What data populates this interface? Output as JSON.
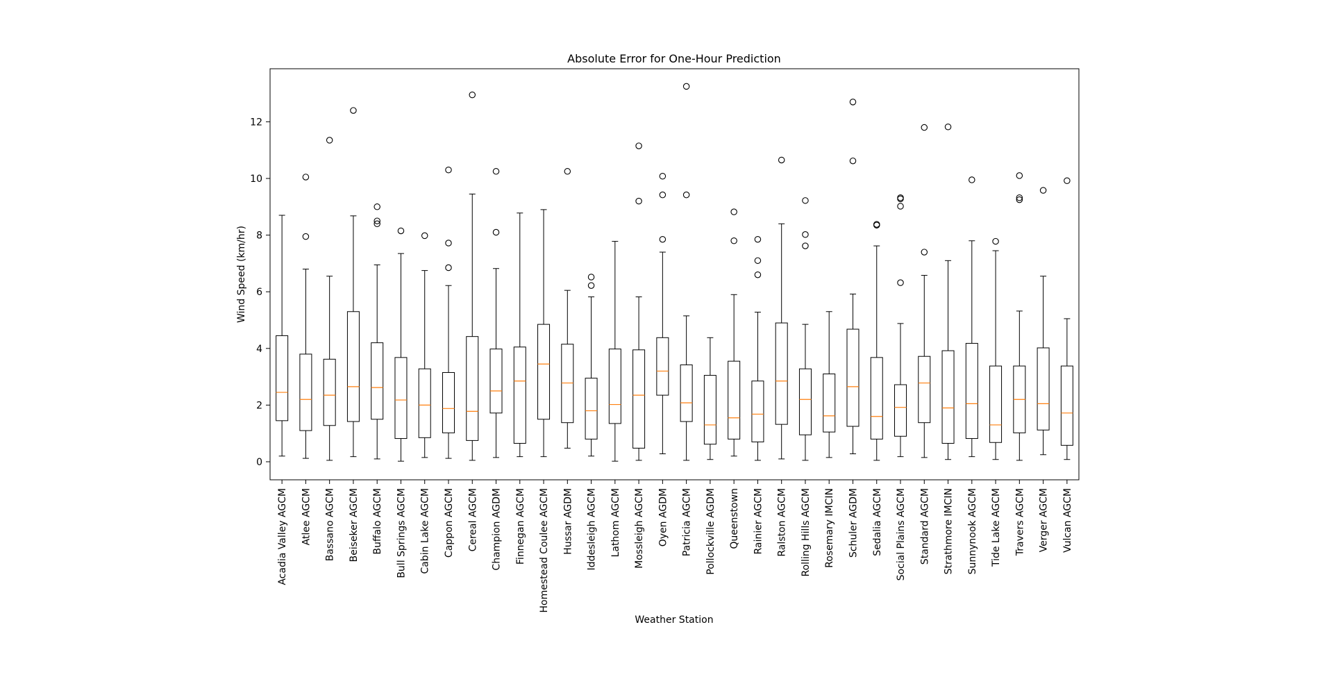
{
  "chart_data": {
    "type": "boxplot",
    "title": "Absolute Error for One-Hour Prediction",
    "xlabel": "Weather Station",
    "ylabel": "Wind Speed (km/hr)",
    "ylim": [
      -0.65,
      13.9
    ],
    "yticks": [
      0,
      2,
      4,
      6,
      8,
      10,
      12
    ],
    "grid": false,
    "colors": {
      "box": "#000000",
      "median": "#ff7f0e",
      "outlier": "#000000"
    },
    "categories": [
      "Acadia Valley AGCM",
      "Atlee AGCM",
      "Bassano AGCM",
      "Beiseker AGCM",
      "Buffalo AGCM",
      "Bull Springs AGCM",
      "Cabin Lake AGCM",
      "Cappon AGCM",
      "Cereal AGCM",
      "Champion AGDM",
      "Finnegan AGCM",
      "Homestead Coulee AGCM",
      "Hussar AGDM",
      "Iddesleigh AGCM",
      "Lathom AGCM",
      "Mossleigh AGCM",
      "Oyen AGDM",
      "Patricia AGCM",
      "Pollockville AGDM",
      "Queenstown",
      "Rainier AGCM",
      "Ralston AGCM",
      "Rolling Hills AGCM",
      "Rosemary IMCIN",
      "Schuler AGDM",
      "Sedalia AGCM",
      "Social Plains AGCM",
      "Standard AGCM",
      "Strathmore IMCIN",
      "Sunnynook AGCM",
      "Tide Lake AGCM",
      "Travers AGCM",
      "Verger AGCM",
      "Vulcan AGCM"
    ],
    "boxes": [
      {
        "whisker_low": 0.2,
        "q1": 1.45,
        "median": 2.45,
        "q3": 4.45,
        "whisker_high": 8.7,
        "outliers": []
      },
      {
        "whisker_low": 0.12,
        "q1": 1.1,
        "median": 2.2,
        "q3": 3.8,
        "whisker_high": 6.8,
        "outliers": [
          7.95,
          10.05
        ]
      },
      {
        "whisker_low": 0.05,
        "q1": 1.28,
        "median": 2.35,
        "q3": 3.62,
        "whisker_high": 6.55,
        "outliers": [
          11.35
        ]
      },
      {
        "whisker_low": 0.18,
        "q1": 1.42,
        "median": 2.65,
        "q3": 5.3,
        "whisker_high": 8.68,
        "outliers": [
          12.4
        ]
      },
      {
        "whisker_low": 0.1,
        "q1": 1.5,
        "median": 2.62,
        "q3": 4.2,
        "whisker_high": 6.95,
        "outliers": [
          8.4,
          8.5,
          9.0
        ]
      },
      {
        "whisker_low": 0.02,
        "q1": 0.82,
        "median": 2.18,
        "q3": 3.68,
        "whisker_high": 7.35,
        "outliers": [
          8.15
        ]
      },
      {
        "whisker_low": 0.15,
        "q1": 0.85,
        "median": 2.0,
        "q3": 3.28,
        "whisker_high": 6.75,
        "outliers": [
          7.98
        ]
      },
      {
        "whisker_low": 0.12,
        "q1": 1.02,
        "median": 1.88,
        "q3": 3.15,
        "whisker_high": 6.22,
        "outliers": [
          6.85,
          7.72,
          10.3
        ]
      },
      {
        "whisker_low": 0.05,
        "q1": 0.75,
        "median": 1.78,
        "q3": 4.42,
        "whisker_high": 9.45,
        "outliers": [
          12.95
        ]
      },
      {
        "whisker_low": 0.15,
        "q1": 1.72,
        "median": 2.5,
        "q3": 3.98,
        "whisker_high": 6.82,
        "outliers": [
          8.1,
          10.25
        ]
      },
      {
        "whisker_low": 0.18,
        "q1": 0.65,
        "median": 2.85,
        "q3": 4.05,
        "whisker_high": 8.78,
        "outliers": []
      },
      {
        "whisker_low": 0.18,
        "q1": 1.5,
        "median": 3.45,
        "q3": 4.85,
        "whisker_high": 8.9,
        "outliers": []
      },
      {
        "whisker_low": 0.48,
        "q1": 1.38,
        "median": 2.78,
        "q3": 4.15,
        "whisker_high": 6.05,
        "outliers": [
          10.25
        ]
      },
      {
        "whisker_low": 0.2,
        "q1": 0.8,
        "median": 1.8,
        "q3": 2.95,
        "whisker_high": 5.82,
        "outliers": [
          6.22,
          6.52
        ]
      },
      {
        "whisker_low": 0.02,
        "q1": 1.35,
        "median": 2.02,
        "q3": 3.98,
        "whisker_high": 7.78,
        "outliers": []
      },
      {
        "whisker_low": 0.05,
        "q1": 0.48,
        "median": 2.35,
        "q3": 3.95,
        "whisker_high": 5.82,
        "outliers": [
          9.2,
          11.15
        ]
      },
      {
        "whisker_low": 0.28,
        "q1": 2.35,
        "median": 3.2,
        "q3": 4.38,
        "whisker_high": 7.4,
        "outliers": [
          7.85,
          9.42,
          10.08
        ]
      },
      {
        "whisker_low": 0.05,
        "q1": 1.42,
        "median": 2.08,
        "q3": 3.42,
        "whisker_high": 5.15,
        "outliers": [
          9.42,
          13.25
        ]
      },
      {
        "whisker_low": 0.08,
        "q1": 0.62,
        "median": 1.3,
        "q3": 3.05,
        "whisker_high": 4.38,
        "outliers": []
      },
      {
        "whisker_low": 0.2,
        "q1": 0.8,
        "median": 1.55,
        "q3": 3.55,
        "whisker_high": 5.9,
        "outliers": [
          7.8,
          8.82
        ]
      },
      {
        "whisker_low": 0.05,
        "q1": 0.7,
        "median": 1.68,
        "q3": 2.85,
        "whisker_high": 5.28,
        "outliers": [
          6.6,
          7.1,
          7.85
        ]
      },
      {
        "whisker_low": 0.1,
        "q1": 1.32,
        "median": 2.85,
        "q3": 4.9,
        "whisker_high": 8.4,
        "outliers": [
          10.65
        ]
      },
      {
        "whisker_low": 0.05,
        "q1": 0.95,
        "median": 2.2,
        "q3": 3.28,
        "whisker_high": 4.85,
        "outliers": [
          7.62,
          8.02,
          9.22
        ]
      },
      {
        "whisker_low": 0.15,
        "q1": 1.05,
        "median": 1.62,
        "q3": 3.1,
        "whisker_high": 5.3,
        "outliers": []
      },
      {
        "whisker_low": 0.28,
        "q1": 1.25,
        "median": 2.65,
        "q3": 4.68,
        "whisker_high": 5.92,
        "outliers": [
          10.62,
          12.7
        ]
      },
      {
        "whisker_low": 0.05,
        "q1": 0.8,
        "median": 1.6,
        "q3": 3.68,
        "whisker_high": 7.62,
        "outliers": [
          8.35,
          8.38
        ]
      },
      {
        "whisker_low": 0.18,
        "q1": 0.9,
        "median": 1.92,
        "q3": 2.72,
        "whisker_high": 4.88,
        "outliers": [
          6.32,
          9.02,
          9.28,
          9.32
        ]
      },
      {
        "whisker_low": 0.15,
        "q1": 1.38,
        "median": 2.78,
        "q3": 3.72,
        "whisker_high": 6.58,
        "outliers": [
          7.4,
          11.8
        ]
      },
      {
        "whisker_low": 0.08,
        "q1": 0.65,
        "median": 1.9,
        "q3": 3.92,
        "whisker_high": 7.1,
        "outliers": [
          11.82
        ]
      },
      {
        "whisker_low": 0.18,
        "q1": 0.82,
        "median": 2.05,
        "q3": 4.18,
        "whisker_high": 7.8,
        "outliers": [
          9.95
        ]
      },
      {
        "whisker_low": 0.08,
        "q1": 0.68,
        "median": 1.3,
        "q3": 3.38,
        "whisker_high": 7.45,
        "outliers": [
          7.78
        ]
      },
      {
        "whisker_low": 0.05,
        "q1": 1.02,
        "median": 2.2,
        "q3": 3.38,
        "whisker_high": 5.32,
        "outliers": [
          9.25,
          9.32,
          10.1
        ]
      },
      {
        "whisker_low": 0.25,
        "q1": 1.12,
        "median": 2.05,
        "q3": 4.02,
        "whisker_high": 6.55,
        "outliers": [
          9.58
        ]
      },
      {
        "whisker_low": 0.08,
        "q1": 0.58,
        "median": 1.72,
        "q3": 3.38,
        "whisker_high": 5.05,
        "outliers": [
          9.92
        ]
      }
    ]
  }
}
